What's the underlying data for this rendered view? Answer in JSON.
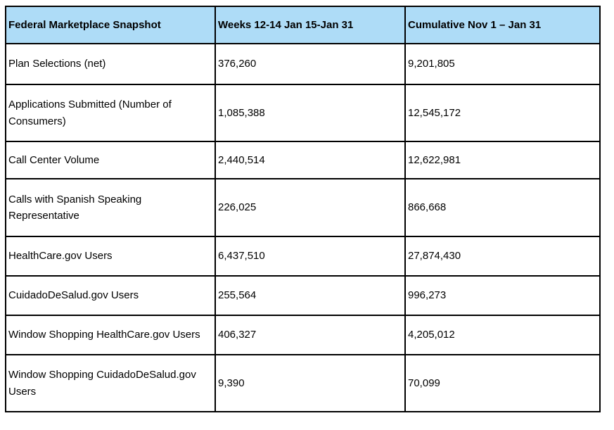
{
  "table": {
    "title": "Federal Marketplace Snapshot",
    "colors": {
      "header_bg": "#aedcf7",
      "border": "#000000",
      "text": "#000000"
    },
    "columns": [
      {
        "label": "Federal Marketplace Snapshot"
      },
      {
        "label": "Weeks 12-14 Jan 15-Jan 31"
      },
      {
        "label": "Cumulative Nov 1 – Jan 31"
      }
    ],
    "rows": [
      {
        "metric": "Plan Selections (net)",
        "weekly": "376,260",
        "cumulative": "9,201,805"
      },
      {
        "metric": "Applications Submitted (Number of Consumers)",
        "weekly": "1,085,388",
        "cumulative": "12,545,172"
      },
      {
        "metric": "Call Center Volume",
        "weekly": "2,440,514",
        "cumulative": "12,622,981"
      },
      {
        "metric": "Calls with Spanish Speaking Representative",
        "weekly": "226,025",
        "cumulative": "866,668"
      },
      {
        "metric": "HealthCare.gov Users",
        "weekly": "6,437,510",
        "cumulative": "27,874,430"
      },
      {
        "metric": "CuidadoDeSalud.gov Users",
        "weekly": "255,564",
        "cumulative": "996,273"
      },
      {
        "metric": "Window Shopping HealthCare.gov Users",
        "weekly": "406,327",
        "cumulative": "4,205,012"
      },
      {
        "metric": "Window Shopping CuidadoDeSalud.gov Users",
        "weekly": "9,390",
        "cumulative": "70,099"
      }
    ]
  }
}
